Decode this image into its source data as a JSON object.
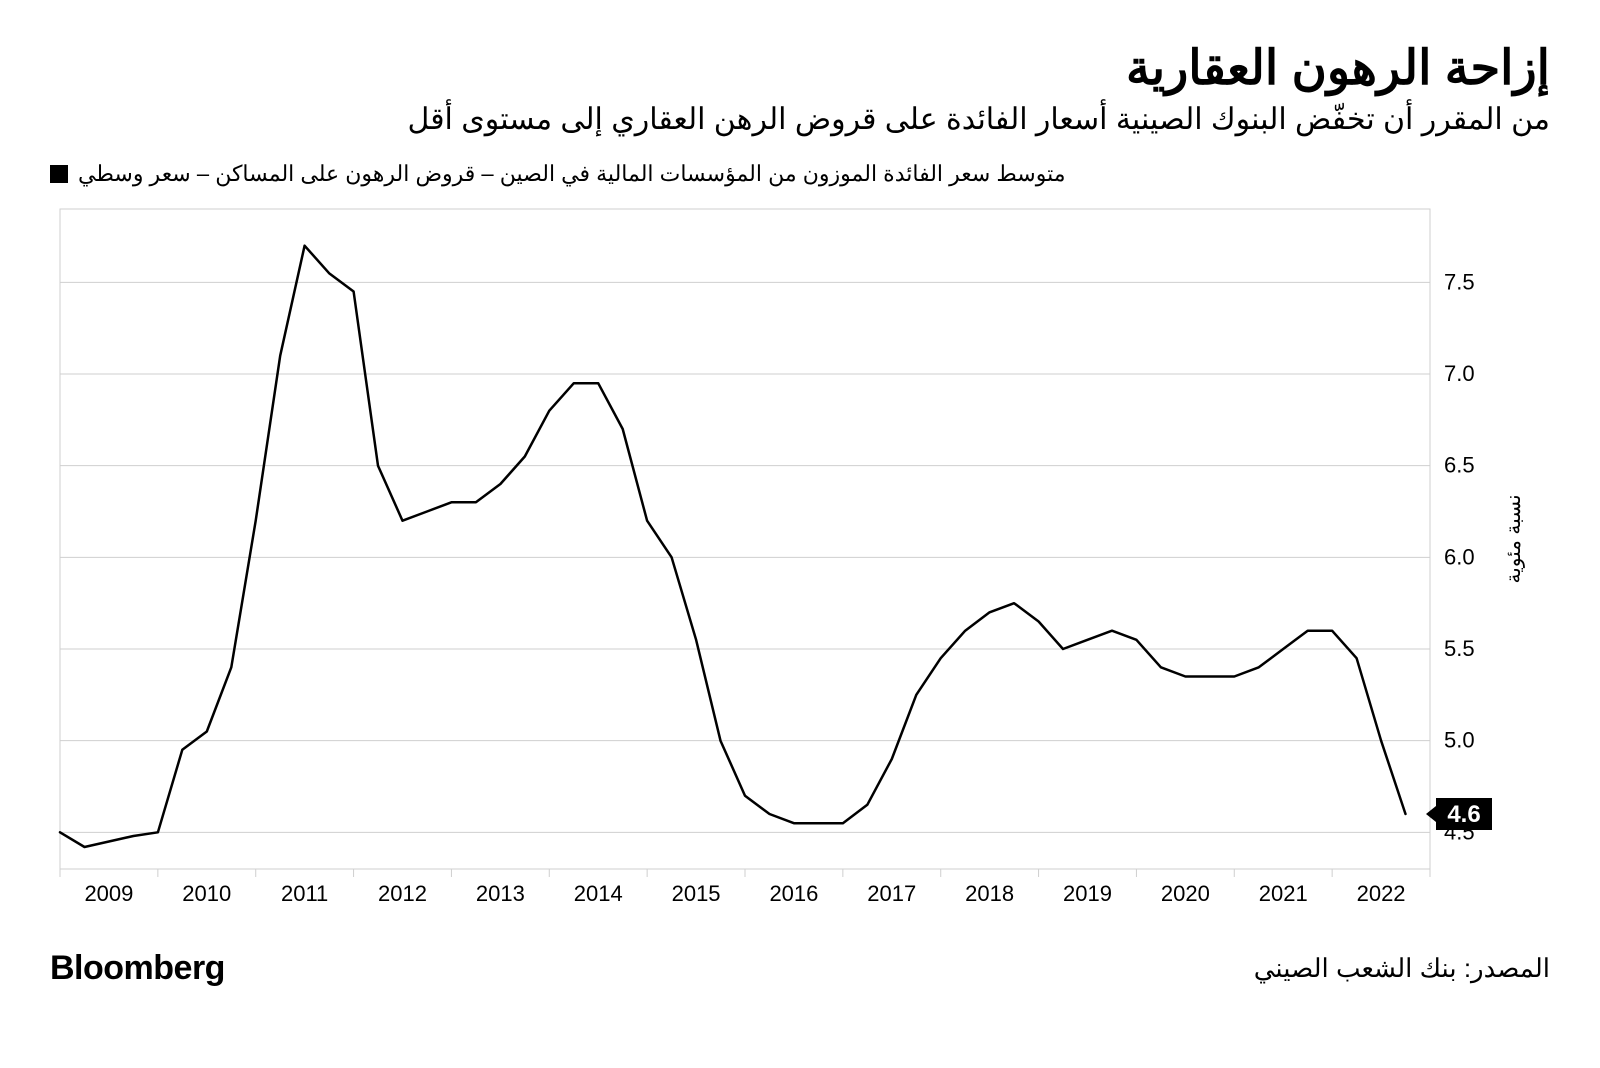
{
  "title": "إزاحة الرهون العقارية",
  "subtitle": "من المقرر أن تخفّض البنوك الصينية أسعار الفائدة على قروض الرهن العقاري إلى مستوى أقل",
  "legend_label": "متوسط سعر الفائدة الموزون من المؤسسات المالية في الصين – قروض الرهون على المساكن – سعر وسطي",
  "brand": "Bloomberg",
  "source": "المصدر: بنك الشعب الصيني",
  "chart": {
    "type": "line",
    "y_axis_title": "نسبة مئوية",
    "line_color": "#000000",
    "line_width": 2.5,
    "background_color": "#ffffff",
    "grid_color": "#cfcfcf",
    "border_color": "#cfcfcf",
    "ylim": [
      4.3,
      7.9
    ],
    "yticks": [
      4.5,
      5.0,
      5.5,
      6.0,
      6.5,
      7.0,
      7.5
    ],
    "ytick_labels": [
      "4.5",
      "5.0",
      "5.5",
      "6.0",
      "6.5",
      "7.0",
      "7.5"
    ],
    "x_labels": [
      "2009",
      "2010",
      "2011",
      "2012",
      "2013",
      "2014",
      "2015",
      "2016",
      "2017",
      "2018",
      "2019",
      "2020",
      "2021",
      "2022"
    ],
    "callout_value": "4.6",
    "callout_bg": "#000000",
    "callout_fg": "#ffffff",
    "series": [
      {
        "t": 0.0,
        "v": 4.5
      },
      {
        "t": 0.25,
        "v": 4.42
      },
      {
        "t": 0.5,
        "v": 4.45
      },
      {
        "t": 0.75,
        "v": 4.48
      },
      {
        "t": 1.0,
        "v": 4.5
      },
      {
        "t": 1.25,
        "v": 4.95
      },
      {
        "t": 1.5,
        "v": 5.05
      },
      {
        "t": 1.75,
        "v": 5.4
      },
      {
        "t": 2.0,
        "v": 6.2
      },
      {
        "t": 2.25,
        "v": 7.1
      },
      {
        "t": 2.5,
        "v": 7.7
      },
      {
        "t": 2.75,
        "v": 7.55
      },
      {
        "t": 3.0,
        "v": 7.45
      },
      {
        "t": 3.25,
        "v": 6.5
      },
      {
        "t": 3.5,
        "v": 6.2
      },
      {
        "t": 3.75,
        "v": 6.25
      },
      {
        "t": 4.0,
        "v": 6.3
      },
      {
        "t": 4.25,
        "v": 6.3
      },
      {
        "t": 4.5,
        "v": 6.4
      },
      {
        "t": 4.75,
        "v": 6.55
      },
      {
        "t": 5.0,
        "v": 6.8
      },
      {
        "t": 5.25,
        "v": 6.95
      },
      {
        "t": 5.5,
        "v": 6.95
      },
      {
        "t": 5.75,
        "v": 6.7
      },
      {
        "t": 6.0,
        "v": 6.2
      },
      {
        "t": 6.25,
        "v": 6.0
      },
      {
        "t": 6.5,
        "v": 5.55
      },
      {
        "t": 6.75,
        "v": 5.0
      },
      {
        "t": 7.0,
        "v": 4.7
      },
      {
        "t": 7.25,
        "v": 4.6
      },
      {
        "t": 7.5,
        "v": 4.55
      },
      {
        "t": 7.75,
        "v": 4.55
      },
      {
        "t": 8.0,
        "v": 4.55
      },
      {
        "t": 8.25,
        "v": 4.65
      },
      {
        "t": 8.5,
        "v": 4.9
      },
      {
        "t": 8.75,
        "v": 5.25
      },
      {
        "t": 9.0,
        "v": 5.45
      },
      {
        "t": 9.25,
        "v": 5.6
      },
      {
        "t": 9.5,
        "v": 5.7
      },
      {
        "t": 9.75,
        "v": 5.75
      },
      {
        "t": 10.0,
        "v": 5.65
      },
      {
        "t": 10.25,
        "v": 5.5
      },
      {
        "t": 10.5,
        "v": 5.55
      },
      {
        "t": 10.75,
        "v": 5.6
      },
      {
        "t": 11.0,
        "v": 5.55
      },
      {
        "t": 11.25,
        "v": 5.4
      },
      {
        "t": 11.5,
        "v": 5.35
      },
      {
        "t": 11.75,
        "v": 5.35
      },
      {
        "t": 12.0,
        "v": 5.35
      },
      {
        "t": 12.25,
        "v": 5.4
      },
      {
        "t": 12.5,
        "v": 5.5
      },
      {
        "t": 12.75,
        "v": 5.6
      },
      {
        "t": 13.0,
        "v": 5.6
      },
      {
        "t": 13.25,
        "v": 5.45
      },
      {
        "t": 13.5,
        "v": 5.0
      },
      {
        "t": 13.75,
        "v": 4.6
      }
    ]
  }
}
